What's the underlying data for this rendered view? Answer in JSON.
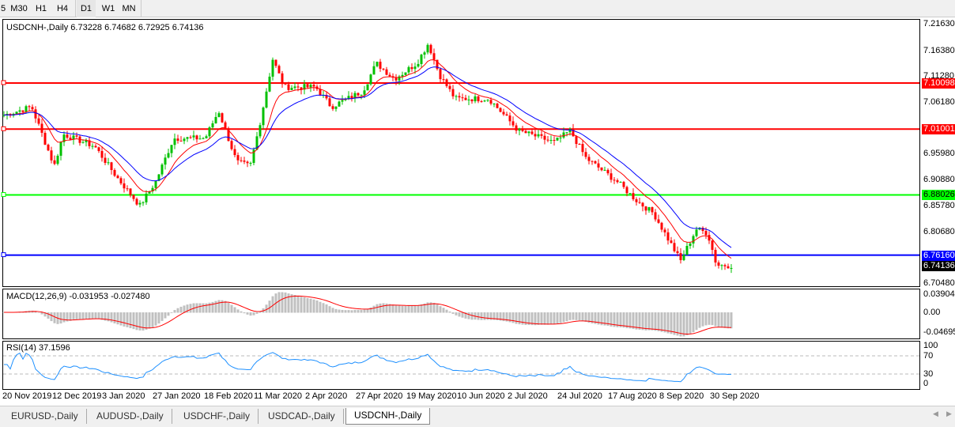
{
  "toolbar": {
    "timeframes": [
      "5",
      "M30",
      "H1",
      "H4",
      "D1",
      "W1",
      "MN"
    ]
  },
  "chart": {
    "symbol_label": "USDCNH-,Daily  6.73228 6.74682 6.72925 6.74136",
    "price_axis": [
      "7.21630",
      "7.16380",
      "7.11280",
      "7.06180",
      "6.95980",
      "6.90880",
      "6.85780",
      "6.80680",
      "6.70480"
    ],
    "levels": [
      {
        "price": "7.10098",
        "color": "#ff0000"
      },
      {
        "price": "7.01001",
        "color": "#ff0000"
      },
      {
        "price": "6.88026",
        "color": "#00ff00"
      },
      {
        "price": "6.76160",
        "color": "#0000ff"
      }
    ],
    "current_price": "6.74136",
    "date_axis": [
      "20 Nov 2019",
      "12 Dec 2019",
      "3 Jan 2020",
      "27 Jan 2020",
      "18 Feb 2020",
      "11 Mar 2020",
      "2 Apr 2020",
      "27 Apr 2020",
      "19 May 2020",
      "10 Jun 2020",
      "2 Jul 2020",
      "24 Jul 2020",
      "17 Aug 2020",
      "8 Sep 2020",
      "30 Sep 2020"
    ],
    "colors": {
      "bull": "#00c000",
      "bear": "#ff0000",
      "ma_fast": "#ff0000",
      "ma_slow": "#0000ff"
    }
  },
  "macd": {
    "label": "MACD(12,26,9) -0.031953 -0.027480",
    "axis": [
      "0.039044",
      "0.00",
      "-0.046959"
    ]
  },
  "rsi": {
    "label": "RSI(14) 37.1596",
    "axis": [
      "100",
      "70",
      "30",
      "0"
    ]
  },
  "chart_data": {
    "type": "candlestick",
    "approx_close": [
      [
        "2019-11-21",
        7.038
      ],
      [
        "2019-12-03",
        7.054
      ],
      [
        "2019-12-13",
        6.937
      ],
      [
        "2019-12-17",
        7.0
      ],
      [
        "2019-12-31",
        6.976
      ],
      [
        "2020-01-10",
        6.914
      ],
      [
        "2020-01-20",
        6.859
      ],
      [
        "2020-01-27",
        6.906
      ],
      [
        "2020-02-04",
        6.992
      ],
      [
        "2020-02-18",
        6.992
      ],
      [
        "2020-02-24",
        7.046
      ],
      [
        "2020-03-03",
        6.945
      ],
      [
        "2020-03-09",
        6.937
      ],
      [
        "2020-03-13",
        7.015
      ],
      [
        "2020-03-19",
        7.148
      ],
      [
        "2020-03-24",
        7.093
      ],
      [
        "2020-04-07",
        7.093
      ],
      [
        "2020-04-14",
        7.054
      ],
      [
        "2020-04-28",
        7.085
      ],
      [
        "2020-05-04",
        7.14
      ],
      [
        "2020-05-12",
        7.109
      ],
      [
        "2020-05-22",
        7.14
      ],
      [
        "2020-05-27",
        7.179
      ],
      [
        "2020-06-01",
        7.117
      ],
      [
        "2020-06-08",
        7.07
      ],
      [
        "2020-06-23",
        7.07
      ],
      [
        "2020-07-06",
        7.007
      ],
      [
        "2020-07-22",
        6.984
      ],
      [
        "2020-07-29",
        7.007
      ],
      [
        "2020-08-05",
        6.953
      ],
      [
        "2020-08-19",
        6.906
      ],
      [
        "2020-08-28",
        6.867
      ],
      [
        "2020-09-04",
        6.844
      ],
      [
        "2020-09-16",
        6.75
      ],
      [
        "2020-09-23",
        6.813
      ],
      [
        "2020-09-28",
        6.805
      ],
      [
        "2020-10-02",
        6.742
      ],
      [
        "2020-10-07",
        6.74136
      ]
    ],
    "ylim": [
      6.7048,
      7.2163
    ]
  },
  "tabs": [
    {
      "label": "EURUSD-,Daily"
    },
    {
      "label": "AUDUSD-,Daily"
    },
    {
      "label": "USDCHF-,Daily"
    },
    {
      "label": "USDCAD-,Daily"
    },
    {
      "label": "USDCNH-,Daily",
      "active": true
    }
  ]
}
